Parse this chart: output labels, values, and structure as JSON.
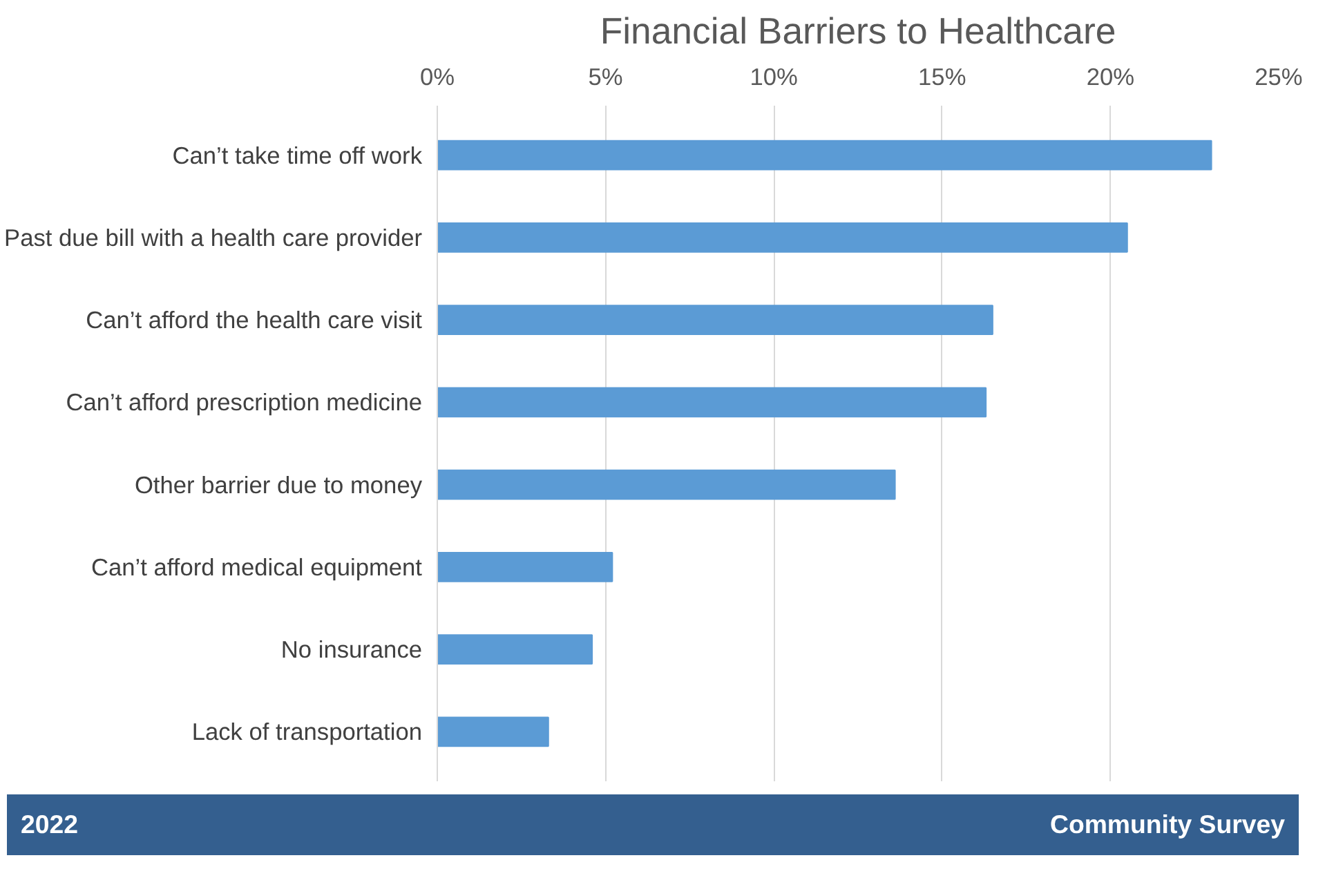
{
  "chart_data": {
    "type": "bar",
    "orientation": "horizontal",
    "title": "Financial Barriers to Healthcare",
    "categories": [
      "Can’t take time off work",
      "Past due bill with a health care provider",
      "Can’t afford the health care visit",
      "Can’t afford prescription medicine",
      "Other barrier due to money",
      "Can’t afford medical equipment",
      "No insurance",
      "Lack of transportation"
    ],
    "values": [
      23.0,
      20.5,
      16.5,
      16.3,
      13.6,
      5.2,
      4.6,
      3.3
    ],
    "color": "#5b9bd5",
    "xlim": [
      0,
      25
    ],
    "xticks": [
      {
        "value": 0,
        "label": "0%"
      },
      {
        "value": 5,
        "label": "5%"
      },
      {
        "value": 10,
        "label": "10%"
      },
      {
        "value": 15,
        "label": "15%"
      },
      {
        "value": 20,
        "label": "20%"
      },
      {
        "value": 25,
        "label": "25%"
      }
    ],
    "grid": "x",
    "annotations": [
      "2022",
      "Community Survey"
    ]
  }
}
